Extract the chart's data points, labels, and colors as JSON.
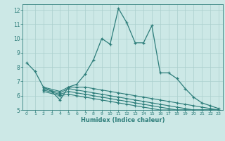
{
  "xlabel": "Humidex (Indice chaleur)",
  "background_color": "#cce8e6",
  "grid_color": "#aacfcd",
  "line_color": "#2d7d7a",
  "xlim": [
    -0.5,
    23.5
  ],
  "ylim": [
    5,
    12.4
  ],
  "yticks": [
    5,
    6,
    7,
    8,
    9,
    10,
    11,
    12
  ],
  "xticks": [
    0,
    1,
    2,
    3,
    4,
    5,
    6,
    7,
    8,
    9,
    10,
    11,
    12,
    13,
    14,
    15,
    16,
    17,
    18,
    19,
    20,
    21,
    22,
    23
  ],
  "series_main": [
    [
      0,
      8.3
    ],
    [
      1,
      7.7
    ],
    [
      2,
      6.6
    ],
    [
      3,
      6.3
    ],
    [
      4,
      5.7
    ],
    [
      5,
      6.6
    ],
    [
      6,
      6.8
    ],
    [
      7,
      7.5
    ],
    [
      8,
      8.5
    ],
    [
      9,
      10.0
    ],
    [
      10,
      9.6
    ],
    [
      11,
      12.1
    ],
    [
      12,
      11.1
    ],
    [
      13,
      9.7
    ],
    [
      14,
      9.7
    ],
    [
      15,
      10.9
    ],
    [
      16,
      7.6
    ],
    [
      17,
      7.6
    ],
    [
      18,
      7.2
    ],
    [
      19,
      6.5
    ],
    [
      20,
      5.9
    ],
    [
      21,
      5.5
    ],
    [
      22,
      5.3
    ],
    [
      23,
      5.1
    ]
  ],
  "flat_lines": [
    [
      [
        2,
        6.6
      ],
      [
        4,
        6.3
      ],
      [
        5,
        6.6
      ],
      [
        6,
        6.6
      ],
      [
        7,
        6.6
      ],
      [
        8,
        6.5
      ],
      [
        9,
        6.4
      ],
      [
        10,
        6.3
      ],
      [
        11,
        6.2
      ],
      [
        12,
        6.1
      ],
      [
        13,
        6.0
      ],
      [
        14,
        5.9
      ],
      [
        15,
        5.8
      ],
      [
        16,
        5.7
      ],
      [
        17,
        5.6
      ],
      [
        18,
        5.5
      ],
      [
        19,
        5.4
      ],
      [
        20,
        5.3
      ],
      [
        21,
        5.2
      ],
      [
        22,
        5.1
      ],
      [
        23,
        5.0
      ]
    ],
    [
      [
        2,
        6.5
      ],
      [
        4,
        6.2
      ],
      [
        5,
        6.5
      ],
      [
        6,
        6.4
      ],
      [
        7,
        6.3
      ],
      [
        8,
        6.2
      ],
      [
        9,
        6.1
      ],
      [
        10,
        6.0
      ],
      [
        11,
        5.9
      ],
      [
        12,
        5.8
      ],
      [
        13,
        5.7
      ],
      [
        14,
        5.6
      ],
      [
        15,
        5.5
      ],
      [
        16,
        5.4
      ],
      [
        17,
        5.3
      ],
      [
        18,
        5.2
      ],
      [
        19,
        5.1
      ],
      [
        20,
        5.0
      ],
      [
        21,
        5.0
      ],
      [
        22,
        5.0
      ],
      [
        23,
        5.0
      ]
    ],
    [
      [
        2,
        6.4
      ],
      [
        4,
        6.1
      ],
      [
        5,
        6.3
      ],
      [
        6,
        6.2
      ],
      [
        7,
        6.1
      ],
      [
        8,
        6.0
      ],
      [
        9,
        5.9
      ],
      [
        10,
        5.8
      ],
      [
        11,
        5.7
      ],
      [
        12,
        5.6
      ],
      [
        13,
        5.5
      ],
      [
        14,
        5.4
      ],
      [
        15,
        5.3
      ],
      [
        16,
        5.2
      ],
      [
        17,
        5.1
      ],
      [
        18,
        5.0
      ],
      [
        19,
        5.0
      ],
      [
        20,
        5.0
      ],
      [
        21,
        5.0
      ],
      [
        22,
        5.0
      ],
      [
        23,
        5.0
      ]
    ],
    [
      [
        2,
        6.3
      ],
      [
        4,
        6.0
      ],
      [
        5,
        6.1
      ],
      [
        6,
        6.0
      ],
      [
        7,
        5.9
      ],
      [
        8,
        5.8
      ],
      [
        9,
        5.7
      ],
      [
        10,
        5.6
      ],
      [
        11,
        5.5
      ],
      [
        12,
        5.4
      ],
      [
        13,
        5.3
      ],
      [
        14,
        5.2
      ],
      [
        15,
        5.1
      ],
      [
        16,
        5.0
      ],
      [
        17,
        5.0
      ],
      [
        18,
        5.0
      ],
      [
        19,
        5.0
      ],
      [
        20,
        5.0
      ],
      [
        21,
        5.0
      ],
      [
        22,
        5.0
      ],
      [
        23,
        5.0
      ]
    ]
  ]
}
